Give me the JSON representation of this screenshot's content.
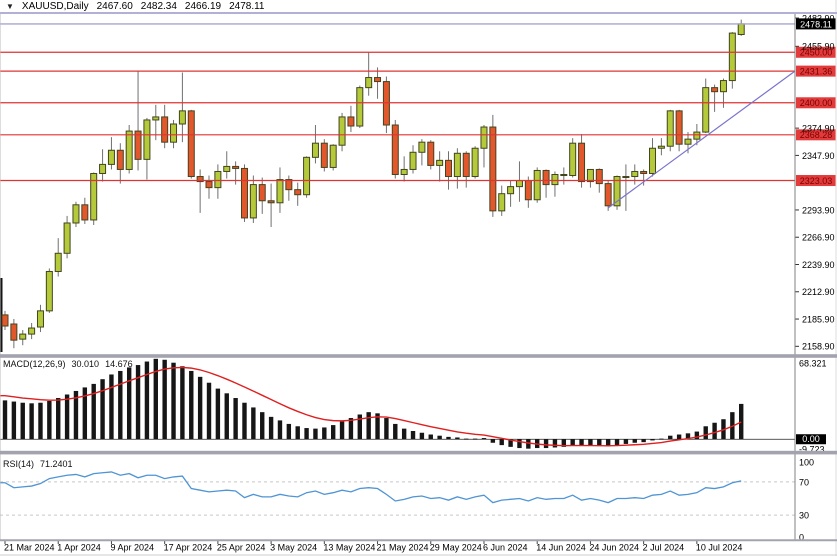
{
  "window": {
    "dropdown_icon": "▼",
    "symbol": "XAUUSD,Daily",
    "open": "2467.60",
    "high": "2482.34",
    "low": "2466.19",
    "close": "2478.11"
  },
  "colors": {
    "bull_fill": "#b5ca3a",
    "bear_fill": "#e2572b",
    "candle_border": "#44441f",
    "wick": "#707070",
    "level_line": "#e03333",
    "level_box_bg": "#e23b3b",
    "level_box_text": "#7b0000",
    "current_line": "#a9a5d1",
    "current_box_bg": "#000000",
    "current_box_text": "#ffffff",
    "trend_line": "#7a74cc",
    "macd_bar": "#161616",
    "macd_signal": "#e02020",
    "rsi_line": "#4f94d4",
    "rsi_dash": "#c8c8c8",
    "panel_border": "#808080",
    "splitter": "#a3a3af",
    "axis_text": "#000000"
  },
  "chart_data": [
    {
      "type": "candlestick",
      "title": "XAUUSD Daily",
      "ylim": [
        2150.3,
        2487.9
      ],
      "y_ticks": [
        "2483.90",
        "2455.90",
        "2374.90",
        "2347.90",
        "2293.90",
        "2266.90",
        "2239.90",
        "2212.90",
        "2185.90",
        "2158.90"
      ],
      "levels": [
        {
          "price": 2450.0,
          "label": "2450.00"
        },
        {
          "price": 2431.36,
          "label": "2431.36"
        },
        {
          "price": 2400.0,
          "label": "2400.00"
        },
        {
          "price": 2368.28,
          "label": "2368.28"
        },
        {
          "price": 2323.03,
          "label": "2323.03"
        }
      ],
      "current_price": {
        "price": 2478.11,
        "label": "2478.11"
      },
      "trendline": {
        "from": {
          "index": 68,
          "price": 2296
        },
        "to": {
          "index": 89,
          "price": 2431
        }
      },
      "x_labels": [
        {
          "index": 0,
          "label": "21 Mar 2024"
        },
        {
          "index": 6,
          "label": "1 Apr 2024"
        },
        {
          "index": 12,
          "label": "9 Apr 2024"
        },
        {
          "index": 18,
          "label": "17 Apr 2024"
        },
        {
          "index": 24,
          "label": "25 Apr 2024"
        },
        {
          "index": 30,
          "label": "3 May 2024"
        },
        {
          "index": 36,
          "label": "13 May 2024"
        },
        {
          "index": 42,
          "label": "21 May 2024"
        },
        {
          "index": 48,
          "label": "29 May 2024"
        },
        {
          "index": 54,
          "label": "6 Jun 2024"
        },
        {
          "index": 60,
          "label": "14 Jun 2024"
        },
        {
          "index": 66,
          "label": "24 Jun 2024"
        },
        {
          "index": 72,
          "label": "2 Jul 2024"
        },
        {
          "index": 78,
          "label": "10 Jul 2024"
        }
      ],
      "candles_ohlc": [
        [
          2190,
          2194,
          2175,
          2179
        ],
        [
          2181,
          2186,
          2157,
          2165
        ],
        [
          2166,
          2175,
          2160,
          2171
        ],
        [
          2171,
          2182,
          2166,
          2177
        ],
        [
          2178,
          2200,
          2173,
          2194
        ],
        [
          2194,
          2236,
          2192,
          2233
        ],
        [
          2233,
          2266,
          2228,
          2251
        ],
        [
          2251,
          2288,
          2246,
          2281
        ],
        [
          2281,
          2302,
          2277,
          2299
        ],
        [
          2299,
          2306,
          2280,
          2284
        ],
        [
          2284,
          2331,
          2279,
          2330
        ],
        [
          2330,
          2354,
          2322,
          2339
        ],
        [
          2339,
          2366,
          2334,
          2353
        ],
        [
          2353,
          2360,
          2320,
          2334
        ],
        [
          2334,
          2378,
          2330,
          2372
        ],
        [
          2372,
          2431,
          2333,
          2344
        ],
        [
          2344,
          2385,
          2324,
          2383
        ],
        [
          2383,
          2398,
          2363,
          2386
        ],
        [
          2386,
          2398,
          2355,
          2361
        ],
        [
          2361,
          2383,
          2355,
          2379
        ],
        [
          2379,
          2430,
          2361,
          2392
        ],
        [
          2392,
          2393,
          2325,
          2327
        ],
        [
          2327,
          2334,
          2291,
          2322
        ],
        [
          2322,
          2328,
          2305,
          2316
        ],
        [
          2316,
          2339,
          2305,
          2332
        ],
        [
          2332,
          2352,
          2325,
          2337
        ],
        [
          2337,
          2342,
          2319,
          2335
        ],
        [
          2335,
          2339,
          2282,
          2286
        ],
        [
          2286,
          2328,
          2281,
          2319
        ],
        [
          2319,
          2326,
          2290,
          2303
        ],
        [
          2303,
          2320,
          2277,
          2301
        ],
        [
          2301,
          2336,
          2291,
          2324
        ],
        [
          2324,
          2328,
          2303,
          2314
        ],
        [
          2314,
          2321,
          2298,
          2309
        ],
        [
          2309,
          2347,
          2306,
          2346
        ],
        [
          2346,
          2378,
          2340,
          2360
        ],
        [
          2360,
          2364,
          2332,
          2336
        ],
        [
          2336,
          2359,
          2333,
          2358
        ],
        [
          2358,
          2390,
          2352,
          2386
        ],
        [
          2386,
          2397,
          2371,
          2377
        ],
        [
          2377,
          2417,
          2375,
          2415
        ],
        [
          2415,
          2450,
          2407,
          2425
        ],
        [
          2425,
          2435,
          2404,
          2421
        ],
        [
          2421,
          2426,
          2370,
          2378
        ],
        [
          2378,
          2383,
          2325,
          2329
        ],
        [
          2329,
          2347,
          2322,
          2334
        ],
        [
          2334,
          2358,
          2330,
          2351
        ],
        [
          2351,
          2364,
          2338,
          2361
        ],
        [
          2361,
          2363,
          2334,
          2338
        ],
        [
          2338,
          2352,
          2322,
          2343
        ],
        [
          2343,
          2352,
          2314,
          2327
        ],
        [
          2327,
          2355,
          2315,
          2350
        ],
        [
          2350,
          2352,
          2316,
          2327
        ],
        [
          2327,
          2357,
          2325,
          2355
        ],
        [
          2355,
          2378,
          2336,
          2376
        ],
        [
          2376,
          2388,
          2287,
          2293
        ],
        [
          2293,
          2318,
          2288,
          2310
        ],
        [
          2310,
          2323,
          2297,
          2317
        ],
        [
          2317,
          2342,
          2302,
          2323
        ],
        [
          2323,
          2327,
          2296,
          2304
        ],
        [
          2304,
          2336,
          2301,
          2333
        ],
        [
          2333,
          2334,
          2306,
          2319
        ],
        [
          2319,
          2332,
          2307,
          2329
        ],
        [
          2329,
          2336,
          2319,
          2328
        ],
        [
          2328,
          2365,
          2326,
          2360
        ],
        [
          2360,
          2369,
          2316,
          2322
        ],
        [
          2322,
          2334,
          2316,
          2334
        ],
        [
          2334,
          2335,
          2311,
          2320
        ],
        [
          2320,
          2323,
          2293,
          2298
        ],
        [
          2298,
          2328,
          2294,
          2327
        ],
        [
          2327,
          2339,
          2293,
          2327
        ],
        [
          2327,
          2339,
          2319,
          2332
        ],
        [
          2332,
          2334,
          2318,
          2330
        ],
        [
          2330,
          2365,
          2327,
          2355
        ],
        [
          2355,
          2365,
          2348,
          2357
        ],
        [
          2357,
          2393,
          2352,
          2392
        ],
        [
          2392,
          2393,
          2352,
          2359
        ],
        [
          2359,
          2371,
          2350,
          2364
        ],
        [
          2364,
          2379,
          2358,
          2371
        ],
        [
          2371,
          2424,
          2370,
          2415
        ],
        [
          2415,
          2418,
          2391,
          2411
        ],
        [
          2411,
          2424,
          2395,
          2422
        ],
        [
          2422,
          2470,
          2414,
          2469
        ],
        [
          2467.6,
          2482.34,
          2466.19,
          2478.11
        ]
      ]
    },
    {
      "type": "bar",
      "name": "MACD(12,26,9)",
      "value_main": "30.010",
      "value_signal": "14.676",
      "ylim": [
        -10,
        69
      ],
      "y_tick_top": "68.321",
      "y_tick_zero": "0.00",
      "y_tick_bottom": "-9.723",
      "histogram": [
        33,
        32,
        31,
        30.5,
        31,
        32.5,
        35,
        38,
        41,
        44,
        47,
        51,
        55,
        58,
        61,
        63,
        66,
        68.3,
        67.5,
        65,
        62,
        58,
        53,
        48,
        43,
        39,
        35,
        31,
        27,
        23,
        19,
        16,
        13,
        11,
        9.5,
        9,
        10,
        12,
        15,
        18,
        21,
        23,
        22,
        18,
        13,
        9,
        7,
        5.5,
        4,
        3,
        2,
        1.5,
        0.5,
        0.5,
        1,
        -3,
        -5,
        -6.5,
        -7.5,
        -8,
        -7.5,
        -7.5,
        -7,
        -6.5,
        -5,
        -5.5,
        -5.5,
        -5.5,
        -6,
        -5,
        -4,
        -3,
        -2.5,
        -1,
        0.5,
        3,
        4,
        5,
        6.5,
        11,
        14,
        17,
        23,
        30.01
      ],
      "signal": [
        37,
        36,
        35,
        34.3,
        33.6,
        33.2,
        33.3,
        34,
        35.2,
        36.8,
        38.8,
        41.2,
        44,
        46.8,
        49.6,
        52.3,
        55,
        57.6,
        59.6,
        60.7,
        61,
        60.4,
        58.9,
        56.7,
        54,
        51,
        47.8,
        44.4,
        40.9,
        37.3,
        33.7,
        30.1,
        26.7,
        23.6,
        20.8,
        18.4,
        16.7,
        15.8,
        15.6,
        16.1,
        17.1,
        18.3,
        19,
        18.8,
        17.6,
        15.9,
        14.1,
        12.4,
        10.7,
        9.2,
        7.7,
        6.2,
        5.1,
        4.2,
        3.5,
        2.2,
        0.8,
        -0.7,
        -2,
        -3.2,
        -4.1,
        -4.8,
        -5.2,
        -5.5,
        -5.4,
        -5.4,
        -5.4,
        -5.5,
        -5.6,
        -5.4,
        -5.1,
        -4.7,
        -4.3,
        -3.6,
        -2.8,
        -1.6,
        -0.5,
        0.6,
        1.8,
        3.6,
        5.7,
        8,
        11,
        14.676
      ]
    },
    {
      "type": "line",
      "name": "RSI(14)",
      "value": "71.2401",
      "ylim": [
        0,
        100
      ],
      "levels": [
        70,
        30
      ],
      "y_ticks": [
        "100",
        "70",
        "30",
        "0"
      ],
      "values": [
        69,
        63,
        64,
        65,
        68,
        74,
        76,
        78,
        79,
        76,
        80,
        81,
        82,
        78,
        80,
        75,
        78,
        78,
        74,
        76,
        77,
        62,
        60,
        58,
        59,
        60,
        59,
        51,
        55,
        52,
        52,
        55,
        53,
        52,
        57,
        59,
        55,
        57,
        60,
        58,
        62,
        63,
        62,
        55,
        47,
        49,
        52,
        53,
        50,
        51,
        48,
        52,
        49,
        52,
        54,
        45,
        48,
        49,
        50,
        47,
        51,
        49,
        50,
        50,
        54,
        48,
        50,
        48,
        45,
        50,
        50,
        51,
        50,
        54,
        55,
        59,
        54,
        55,
        57,
        63,
        62,
        64,
        69,
        71.24
      ]
    }
  ]
}
